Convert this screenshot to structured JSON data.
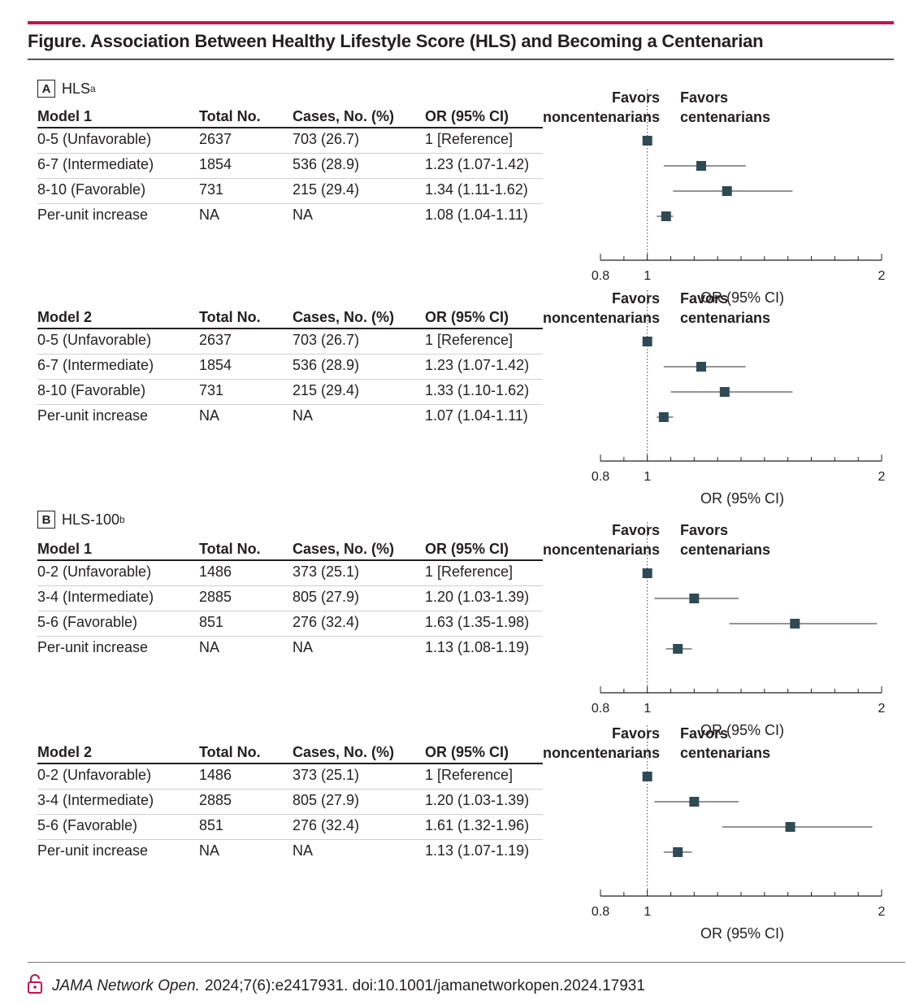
{
  "figure": {
    "title": "Figure. Association Between Healthy Lifestyle Score (HLS) and Becoming a Centenarian"
  },
  "columns": {
    "total": "Total No.",
    "cases": "Cases, No. (%)",
    "or": "OR (95% CI)"
  },
  "favors": {
    "left": [
      "Favors",
      "noncentenarians"
    ],
    "right": [
      "Favors",
      "centenarians"
    ]
  },
  "axis": {
    "title": "OR (95% CI)",
    "tick_labels": [
      "0.8",
      "1",
      "2"
    ]
  },
  "panels": [
    {
      "letter": "A",
      "label": "HLS",
      "superscript": "a"
    },
    {
      "letter": "B",
      "label": "HLS-100",
      "superscript": "b"
    }
  ],
  "colors": {
    "accent_rule": "#c8104f",
    "marker": "#2e4a55"
  },
  "chart_data": [
    {
      "type": "forest",
      "panel": "A",
      "model": "Model 1",
      "xlim": [
        0.8,
        2
      ],
      "xscale": "linear",
      "ticks": [
        0.8,
        0.9,
        1,
        1.1,
        1.2,
        1.3,
        1.4,
        1.5,
        1.6,
        1.7,
        1.8,
        1.9,
        2
      ],
      "reference_line": 1,
      "rows": [
        {
          "label": "0-5 (Unfavorable)",
          "total": "2637",
          "cases": "703 (26.7)",
          "or_text": "1 [Reference]",
          "or": 1,
          "lo": 1,
          "hi": 1
        },
        {
          "label": "6-7 (Intermediate)",
          "total": "1854",
          "cases": "536 (28.9)",
          "or_text": "1.23 (1.07-1.42)",
          "or": 1.23,
          "lo": 1.07,
          "hi": 1.42
        },
        {
          "label": "8-10 (Favorable)",
          "total": "731",
          "cases": "215 (29.4)",
          "or_text": "1.34 (1.11-1.62)",
          "or": 1.34,
          "lo": 1.11,
          "hi": 1.62
        },
        {
          "label": "Per-unit increase",
          "total": "NA",
          "cases": "NA",
          "or_text": "1.08 (1.04-1.11)",
          "or": 1.08,
          "lo": 1.04,
          "hi": 1.11
        }
      ]
    },
    {
      "type": "forest",
      "panel": "A",
      "model": "Model 2",
      "xlim": [
        0.8,
        2
      ],
      "xscale": "linear",
      "ticks": [
        0.8,
        0.9,
        1,
        1.1,
        1.2,
        1.3,
        1.4,
        1.5,
        1.6,
        1.7,
        1.8,
        1.9,
        2
      ],
      "reference_line": 1,
      "rows": [
        {
          "label": "0-5 (Unfavorable)",
          "total": "2637",
          "cases": "703 (26.7)",
          "or_text": "1 [Reference]",
          "or": 1,
          "lo": 1,
          "hi": 1
        },
        {
          "label": "6-7 (Intermediate)",
          "total": "1854",
          "cases": "536 (28.9)",
          "or_text": "1.23 (1.07-1.42)",
          "or": 1.23,
          "lo": 1.07,
          "hi": 1.42
        },
        {
          "label": "8-10 (Favorable)",
          "total": "731",
          "cases": "215 (29.4)",
          "or_text": "1.33 (1.10-1.62)",
          "or": 1.33,
          "lo": 1.1,
          "hi": 1.62
        },
        {
          "label": "Per-unit increase",
          "total": "NA",
          "cases": "NA",
          "or_text": "1.07 (1.04-1.11)",
          "or": 1.07,
          "lo": 1.04,
          "hi": 1.11
        }
      ]
    },
    {
      "type": "forest",
      "panel": "B",
      "model": "Model 1",
      "xlim": [
        0.8,
        2
      ],
      "xscale": "linear",
      "ticks": [
        0.8,
        0.9,
        1,
        1.1,
        1.2,
        1.3,
        1.4,
        1.5,
        1.6,
        1.7,
        1.8,
        1.9,
        2
      ],
      "reference_line": 1,
      "rows": [
        {
          "label": "0-2 (Unfavorable)",
          "total": "1486",
          "cases": "373 (25.1)",
          "or_text": "1 [Reference]",
          "or": 1,
          "lo": 1,
          "hi": 1
        },
        {
          "label": "3-4 (Intermediate)",
          "total": "2885",
          "cases": "805 (27.9)",
          "or_text": "1.20 (1.03-1.39)",
          "or": 1.2,
          "lo": 1.03,
          "hi": 1.39
        },
        {
          "label": "5-6 (Favorable)",
          "total": "851",
          "cases": "276 (32.4)",
          "or_text": "1.63 (1.35-1.98)",
          "or": 1.63,
          "lo": 1.35,
          "hi": 1.98
        },
        {
          "label": "Per-unit increase",
          "total": "NA",
          "cases": "NA",
          "or_text": "1.13 (1.08-1.19)",
          "or": 1.13,
          "lo": 1.08,
          "hi": 1.19
        }
      ]
    },
    {
      "type": "forest",
      "panel": "B",
      "model": "Model 2",
      "xlim": [
        0.8,
        2
      ],
      "xscale": "linear",
      "ticks": [
        0.8,
        0.9,
        1,
        1.1,
        1.2,
        1.3,
        1.4,
        1.5,
        1.6,
        1.7,
        1.8,
        1.9,
        2
      ],
      "reference_line": 1,
      "rows": [
        {
          "label": "0-2 (Unfavorable)",
          "total": "1486",
          "cases": "373 (25.1)",
          "or_text": "1 [Reference]",
          "or": 1,
          "lo": 1,
          "hi": 1
        },
        {
          "label": "3-4 (Intermediate)",
          "total": "2885",
          "cases": "805 (27.9)",
          "or_text": "1.20 (1.03-1.39)",
          "or": 1.2,
          "lo": 1.03,
          "hi": 1.39
        },
        {
          "label": "5-6 (Favorable)",
          "total": "851",
          "cases": "276 (32.4)",
          "or_text": "1.61 (1.32-1.96)",
          "or": 1.61,
          "lo": 1.32,
          "hi": 1.96
        },
        {
          "label": "Per-unit increase",
          "total": "NA",
          "cases": "NA",
          "or_text": "1.13 (1.07-1.19)",
          "or": 1.13,
          "lo": 1.07,
          "hi": 1.19
        }
      ]
    }
  ],
  "footer": {
    "journal": "JAMA Network Open.",
    "citation": "2024;7(6):e2417931. doi:10.1001/jamanetworkopen.2024.17931"
  }
}
